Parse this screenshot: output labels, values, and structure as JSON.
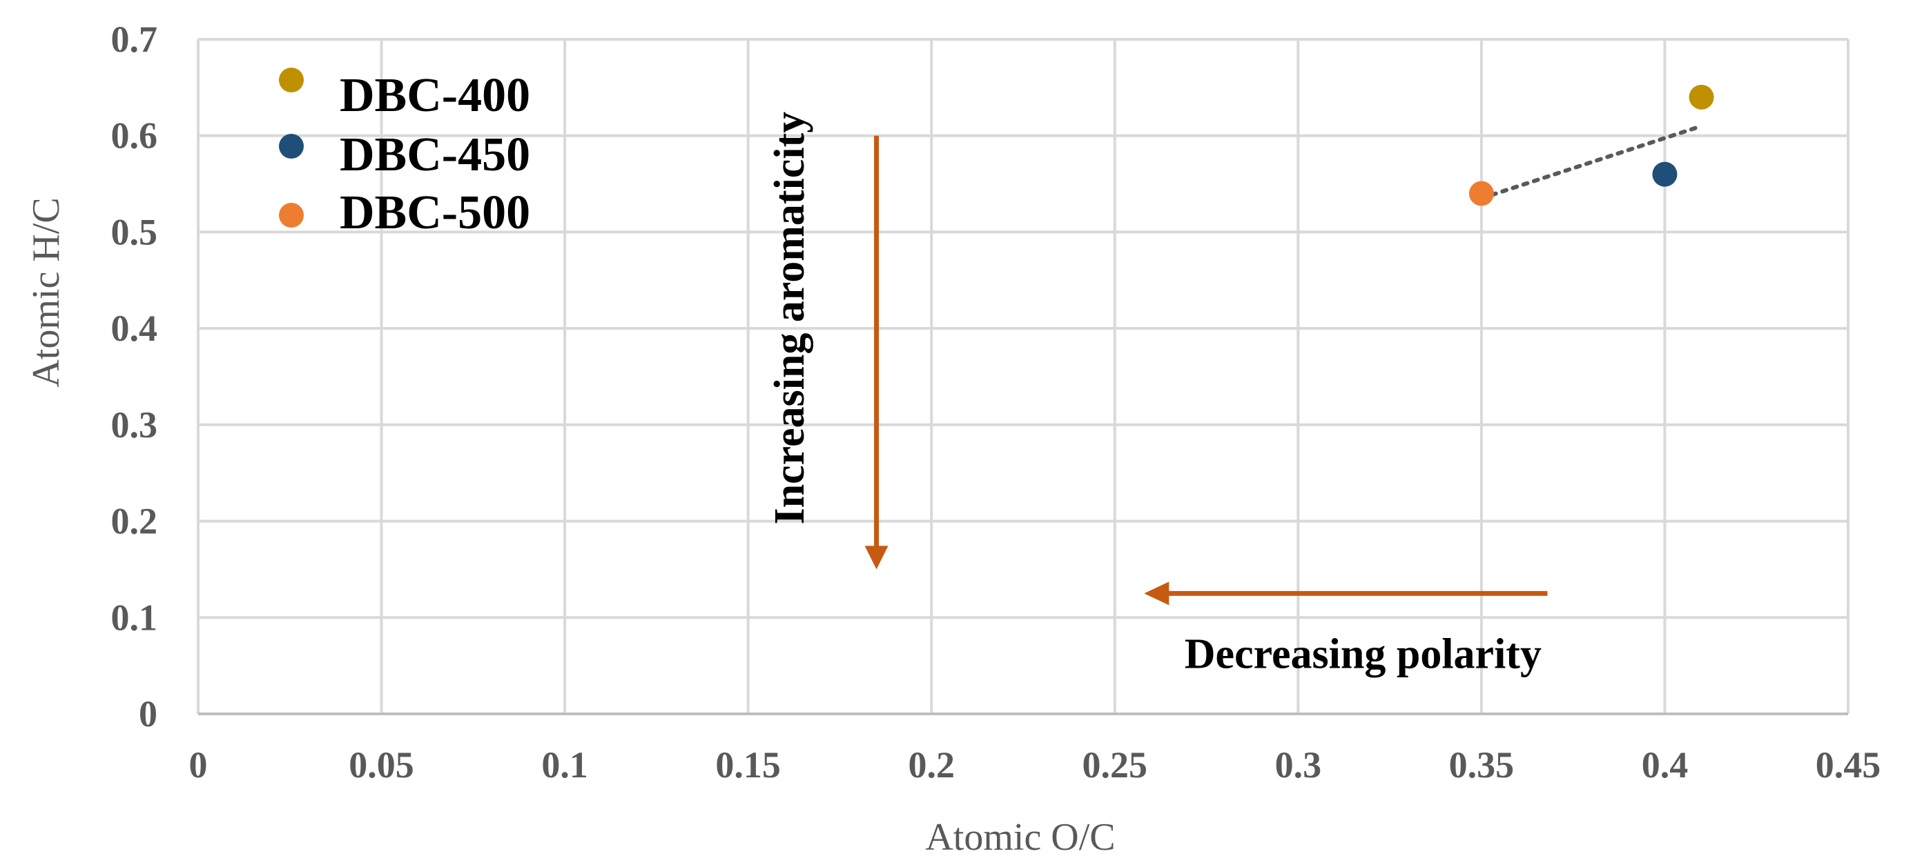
{
  "chart_data": {
    "type": "scatter",
    "title": "",
    "xlabel": "Atomic O/C",
    "ylabel": "Atomic H/C",
    "xlim": [
      0,
      0.45
    ],
    "ylim": [
      0,
      0.7
    ],
    "x_ticks": [
      0,
      0.05,
      0.1,
      0.15,
      0.2,
      0.25,
      0.3,
      0.35,
      0.4,
      0.45
    ],
    "x_tick_labels": [
      "0",
      "0.05",
      "0.1",
      "0.15",
      "0.2",
      "0.25",
      "0.3",
      "0.35",
      "0.4",
      "0.45"
    ],
    "y_ticks": [
      0,
      0.1,
      0.2,
      0.3,
      0.4,
      0.5,
      0.6,
      0.7
    ],
    "y_tick_labels": [
      "0",
      "0.1",
      "0.2",
      "0.3",
      "0.4",
      "0.5",
      "0.6",
      "0.7"
    ],
    "grid": true,
    "legend_position": "top-left",
    "series": [
      {
        "name": "DBC-400",
        "color": "#BF9000",
        "x": [
          0.41
        ],
        "y": [
          0.64
        ]
      },
      {
        "name": "DBC-450",
        "color": "#1F4E79",
        "x": [
          0.4
        ],
        "y": [
          0.56
        ]
      },
      {
        "name": "DBC-500",
        "color": "#ED7D31",
        "x": [
          0.35
        ],
        "y": [
          0.54
        ]
      }
    ],
    "trendline": {
      "style": "dotted",
      "color": "#595959",
      "from": [
        0.35,
        0.535
      ],
      "to": [
        0.41,
        0.61
      ]
    },
    "annotations": [
      {
        "text": "Increasing aromaticity",
        "arrow_direction": "down",
        "arrow_x": 0.185,
        "arrow_from_y": 0.6,
        "arrow_to_y": 0.15,
        "color": "#C55A11"
      },
      {
        "text": "Decreasing polarity",
        "arrow_direction": "left",
        "arrow_y": 0.125,
        "arrow_from_x": 0.368,
        "arrow_to_x": 0.258,
        "color": "#C55A11"
      }
    ]
  }
}
